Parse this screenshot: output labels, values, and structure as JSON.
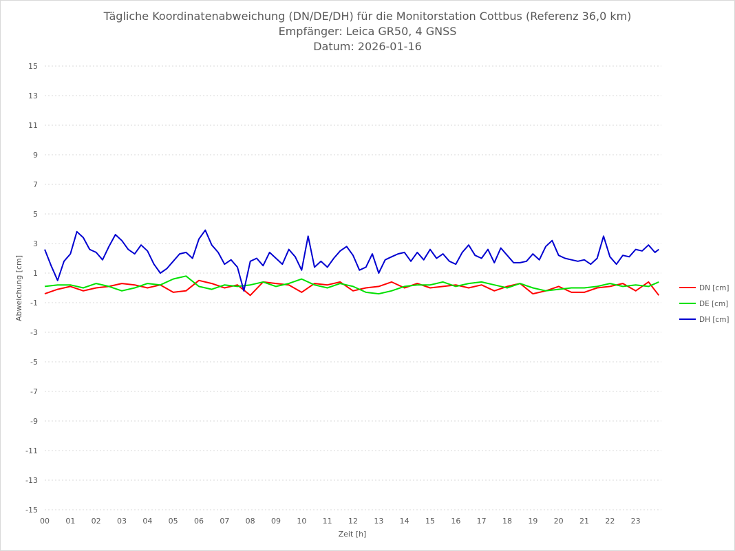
{
  "chart_data": {
    "type": "line",
    "title_lines": [
      "Tägliche Koordinatenabweichung (DN/DE/DH) für die Monitorstation Cottbus (Referenz 36,0 km)",
      "Empfänger: Leica GR50, 4 GNSS",
      "Datum: 2026-01-16"
    ],
    "xlabel": "Zeit [h]",
    "ylabel": "Abweichung [cm]",
    "xlim": [
      0,
      24
    ],
    "ylim": [
      -15,
      15
    ],
    "x_ticks": [
      "00",
      "01",
      "02",
      "03",
      "04",
      "05",
      "06",
      "07",
      "08",
      "09",
      "10",
      "11",
      "12",
      "13",
      "14",
      "15",
      "16",
      "17",
      "18",
      "19",
      "20",
      "21",
      "22",
      "23"
    ],
    "y_ticks": [
      "15",
      "13",
      "11",
      "9",
      "7",
      "5",
      "3",
      "1",
      "-1",
      "-3",
      "-5",
      "-7",
      "-9",
      "-11",
      "-13",
      "-15"
    ],
    "grid": "horizontal",
    "legend_position": "right",
    "series": [
      {
        "name": "DN [cm]",
        "color": "#ff0000",
        "x": [
          0,
          0.5,
          1,
          1.5,
          2,
          2.5,
          3,
          3.5,
          4,
          4.5,
          5,
          5.5,
          6,
          6.5,
          7,
          7.5,
          8,
          8.5,
          9,
          9.5,
          10,
          10.5,
          11,
          11.5,
          12,
          12.5,
          13,
          13.5,
          14,
          14.5,
          15,
          15.5,
          16,
          16.5,
          17,
          17.5,
          18,
          18.5,
          19,
          19.5,
          20,
          20.5,
          21,
          21.5,
          22,
          22.5,
          23,
          23.5,
          23.9
        ],
        "y": [
          -0.4,
          -0.1,
          0.1,
          -0.2,
          0,
          0.1,
          0.3,
          0.2,
          0,
          0.2,
          -0.3,
          -0.2,
          0.5,
          0.3,
          0,
          0.2,
          -0.5,
          0.4,
          0.3,
          0.2,
          -0.3,
          0.3,
          0.2,
          0.4,
          -0.2,
          0,
          0.1,
          0.4,
          0,
          0.3,
          0,
          0.1,
          0.2,
          0,
          0.2,
          -0.2,
          0.1,
          0.3,
          -0.4,
          -0.2,
          0.1,
          -0.3,
          -0.3,
          0,
          0.1,
          0.3,
          -0.2,
          0.4,
          -0.5
        ]
      },
      {
        "name": "DE [cm]",
        "color": "#00e000",
        "x": [
          0,
          0.5,
          1,
          1.5,
          2,
          2.5,
          3,
          3.5,
          4,
          4.5,
          5,
          5.5,
          6,
          6.5,
          7,
          7.5,
          8,
          8.5,
          9,
          9.5,
          10,
          10.5,
          11,
          11.5,
          12,
          12.5,
          13,
          13.5,
          14,
          14.5,
          15,
          15.5,
          16,
          16.5,
          17,
          17.5,
          18,
          18.5,
          19,
          19.5,
          20,
          20.5,
          21,
          21.5,
          22,
          22.5,
          23,
          23.5,
          23.9
        ],
        "y": [
          0.1,
          0.2,
          0.2,
          0,
          0.3,
          0.1,
          -0.2,
          0,
          0.3,
          0.2,
          0.6,
          0.8,
          0.1,
          -0.1,
          0.2,
          0.1,
          0.2,
          0.4,
          0.1,
          0.3,
          0.6,
          0.2,
          0,
          0.3,
          0.1,
          -0.3,
          -0.4,
          -0.2,
          0.1,
          0.2,
          0.2,
          0.4,
          0.1,
          0.3,
          0.4,
          0.2,
          0,
          0.3,
          0,
          -0.2,
          -0.1,
          0,
          0,
          0.1,
          0.3,
          0.1,
          0.2,
          0.1,
          0.4
        ]
      },
      {
        "name": "DH [cm]",
        "color": "#0000d0",
        "x": [
          0,
          0.25,
          0.5,
          0.75,
          1,
          1.25,
          1.5,
          1.75,
          2,
          2.25,
          2.5,
          2.75,
          3,
          3.25,
          3.5,
          3.75,
          4,
          4.25,
          4.5,
          4.75,
          5,
          5.25,
          5.5,
          5.75,
          6,
          6.25,
          6.5,
          6.75,
          7,
          7.25,
          7.5,
          7.75,
          8,
          8.25,
          8.5,
          8.75,
          9,
          9.25,
          9.5,
          9.75,
          10,
          10.25,
          10.5,
          10.75,
          11,
          11.25,
          11.5,
          11.75,
          12,
          12.25,
          12.5,
          12.75,
          13,
          13.25,
          13.5,
          13.75,
          14,
          14.25,
          14.5,
          14.75,
          15,
          15.25,
          15.5,
          15.75,
          16,
          16.25,
          16.5,
          16.75,
          17,
          17.25,
          17.5,
          17.75,
          18,
          18.25,
          18.5,
          18.75,
          19,
          19.25,
          19.5,
          19.75,
          20,
          20.25,
          20.5,
          20.75,
          21,
          21.25,
          21.5,
          21.75,
          22,
          22.25,
          22.5,
          22.75,
          23,
          23.25,
          23.5,
          23.75,
          23.9
        ],
        "y": [
          2.6,
          1.5,
          0.5,
          1.8,
          2.3,
          3.8,
          3.4,
          2.6,
          2.4,
          1.9,
          2.8,
          3.6,
          3.2,
          2.6,
          2.3,
          2.9,
          2.5,
          1.6,
          1.0,
          1.3,
          1.8,
          2.3,
          2.4,
          2.0,
          3.3,
          3.9,
          2.9,
          2.4,
          1.6,
          1.9,
          1.4,
          -0.2,
          1.8,
          2.0,
          1.5,
          2.4,
          2.0,
          1.6,
          2.6,
          2.1,
          1.2,
          3.5,
          1.4,
          1.8,
          1.4,
          2.0,
          2.5,
          2.8,
          2.2,
          1.2,
          1.4,
          2.3,
          1.0,
          1.9,
          2.1,
          2.3,
          2.4,
          1.8,
          2.4,
          1.9,
          2.6,
          2.0,
          2.3,
          1.8,
          1.6,
          2.4,
          2.9,
          2.2,
          2.0,
          2.6,
          1.7,
          2.7,
          2.2,
          1.7,
          1.7,
          1.8,
          2.3,
          1.9,
          2.8,
          3.2,
          2.2,
          2.0,
          1.9,
          1.8,
          1.9,
          1.6,
          2.0,
          3.5,
          2.1,
          1.6,
          2.2,
          2.1,
          2.6,
          2.5,
          2.9,
          2.4,
          2.6
        ]
      }
    ]
  }
}
